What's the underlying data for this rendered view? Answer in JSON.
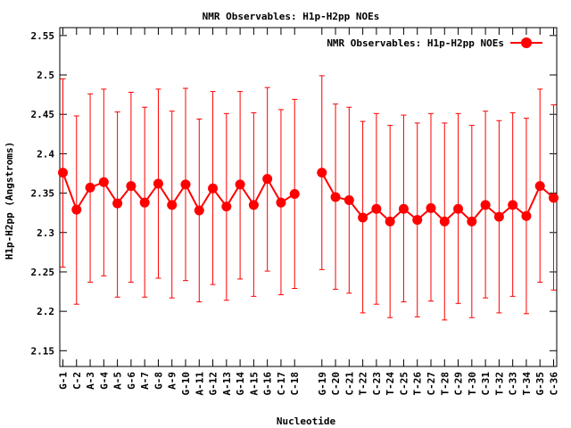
{
  "chart_data": {
    "type": "line",
    "title": "NMR Observables: H1p-H2pp NOEs",
    "xlabel": "Nucleotide",
    "ylabel": "H1p-H2pp (Angstroms)",
    "ylim": [
      2.13,
      2.56
    ],
    "yticks": [
      2.15,
      2.2,
      2.25,
      2.3,
      2.35,
      2.4,
      2.45,
      2.5,
      2.55
    ],
    "grid": false,
    "legend_position": "top-right",
    "color": "#ff0000",
    "series": [
      {
        "name": "NMR Observables: H1p-H2pp NOEs",
        "points": [
          {
            "label": "G-1",
            "y": 2.376,
            "lo": 2.256,
            "hi": 2.495
          },
          {
            "label": "C-2",
            "y": 2.329,
            "lo": 2.209,
            "hi": 2.448
          },
          {
            "label": "A-3",
            "y": 2.357,
            "lo": 2.237,
            "hi": 2.476
          },
          {
            "label": "G-4",
            "y": 2.364,
            "lo": 2.245,
            "hi": 2.482
          },
          {
            "label": "A-5",
            "y": 2.337,
            "lo": 2.218,
            "hi": 2.453
          },
          {
            "label": "G-6",
            "y": 2.359,
            "lo": 2.237,
            "hi": 2.478
          },
          {
            "label": "A-7",
            "y": 2.338,
            "lo": 2.218,
            "hi": 2.459
          },
          {
            "label": "G-8",
            "y": 2.362,
            "lo": 2.242,
            "hi": 2.482
          },
          {
            "label": "A-9",
            "y": 2.335,
            "lo": 2.217,
            "hi": 2.454
          },
          {
            "label": "G-10",
            "y": 2.361,
            "lo": 2.239,
            "hi": 2.483
          },
          {
            "label": "A-11",
            "y": 2.328,
            "lo": 2.212,
            "hi": 2.444
          },
          {
            "label": "G-12",
            "y": 2.356,
            "lo": 2.234,
            "hi": 2.479
          },
          {
            "label": "A-13",
            "y": 2.333,
            "lo": 2.214,
            "hi": 2.451
          },
          {
            "label": "G-14",
            "y": 2.361,
            "lo": 2.241,
            "hi": 2.479
          },
          {
            "label": "A-15",
            "y": 2.335,
            "lo": 2.219,
            "hi": 2.452
          },
          {
            "label": "G-16",
            "y": 2.368,
            "lo": 2.251,
            "hi": 2.484
          },
          {
            "label": "C-17",
            "y": 2.338,
            "lo": 2.221,
            "hi": 2.456
          },
          {
            "label": "C-18",
            "y": 2.349,
            "lo": 2.229,
            "hi": 2.469
          },
          {
            "label": "",
            "y": null,
            "lo": null,
            "hi": null
          },
          {
            "label": "G-19",
            "y": 2.376,
            "lo": 2.253,
            "hi": 2.499
          },
          {
            "label": "C-20",
            "y": 2.345,
            "lo": 2.228,
            "hi": 2.463
          },
          {
            "label": "C-21",
            "y": 2.341,
            "lo": 2.223,
            "hi": 2.459
          },
          {
            "label": "T-22",
            "y": 2.319,
            "lo": 2.198,
            "hi": 2.441
          },
          {
            "label": "C-23",
            "y": 2.33,
            "lo": 2.209,
            "hi": 2.451
          },
          {
            "label": "T-24",
            "y": 2.314,
            "lo": 2.192,
            "hi": 2.436
          },
          {
            "label": "C-25",
            "y": 2.33,
            "lo": 2.212,
            "hi": 2.449
          },
          {
            "label": "T-26",
            "y": 2.316,
            "lo": 2.193,
            "hi": 2.439
          },
          {
            "label": "C-27",
            "y": 2.331,
            "lo": 2.213,
            "hi": 2.451
          },
          {
            "label": "T-28",
            "y": 2.314,
            "lo": 2.189,
            "hi": 2.439
          },
          {
            "label": "C-29",
            "y": 2.33,
            "lo": 2.21,
            "hi": 2.451
          },
          {
            "label": "T-30",
            "y": 2.314,
            "lo": 2.192,
            "hi": 2.436
          },
          {
            "label": "C-31",
            "y": 2.335,
            "lo": 2.217,
            "hi": 2.454
          },
          {
            "label": "T-32",
            "y": 2.32,
            "lo": 2.198,
            "hi": 2.442
          },
          {
            "label": "C-33",
            "y": 2.335,
            "lo": 2.219,
            "hi": 2.452
          },
          {
            "label": "T-34",
            "y": 2.321,
            "lo": 2.197,
            "hi": 2.445
          },
          {
            "label": "G-35",
            "y": 2.359,
            "lo": 2.237,
            "hi": 2.482
          },
          {
            "label": "C-36",
            "y": 2.344,
            "lo": 2.227,
            "hi": 2.462
          }
        ]
      }
    ]
  }
}
